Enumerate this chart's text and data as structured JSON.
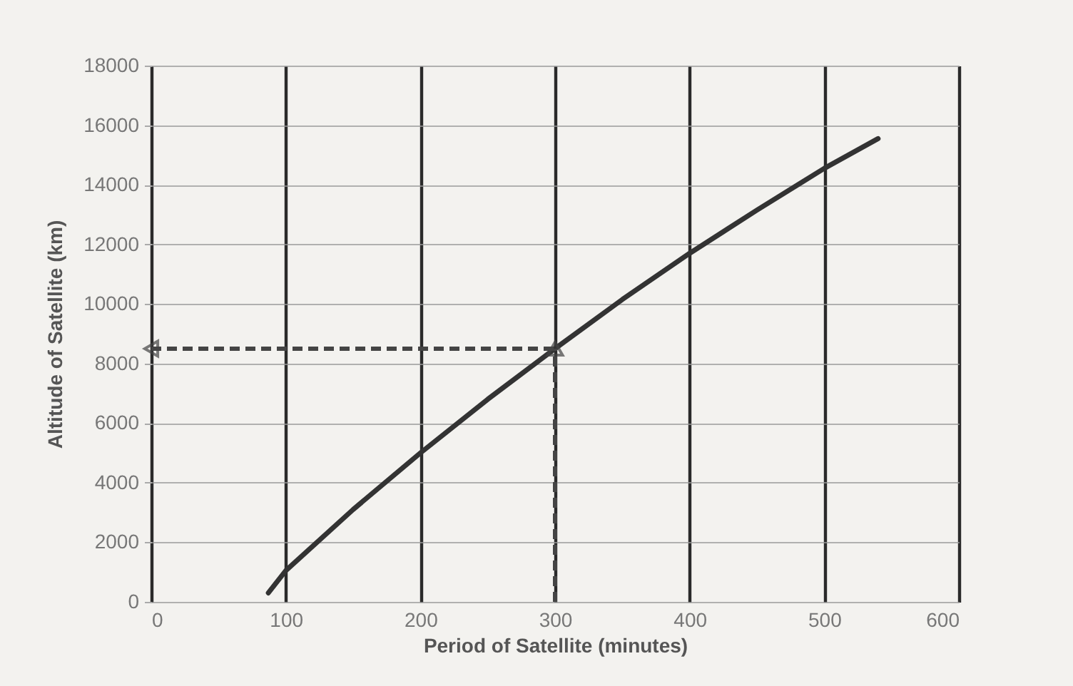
{
  "chart_data": {
    "type": "line",
    "xlabel": "Period of Satellite (minutes)",
    "ylabel": "Altitude of Satellite (km)",
    "xlim": [
      0,
      600
    ],
    "xticks": [
      0,
      100,
      200,
      300,
      400,
      500,
      600
    ],
    "ylim": [
      0,
      18000
    ],
    "yticks": [
      0,
      2000,
      4000,
      6000,
      8000,
      10000,
      12000,
      14000,
      16000,
      18000
    ],
    "grid": true,
    "series": [
      {
        "color": "#333333",
        "x": [
          87,
          100,
          150,
          200,
          250,
          300,
          350,
          400,
          450,
          500,
          540
        ],
        "values": [
          300,
          1050,
          3100,
          5000,
          6800,
          8500,
          10150,
          11700,
          13150,
          14550,
          15550
        ]
      }
    ],
    "ref_lines": [
      {
        "axis": "x",
        "value": 300,
        "color": "#444444",
        "line_style": "dashed"
      },
      {
        "axis": "y",
        "value": 8500,
        "color": "#444444",
        "line_style": "dashed"
      }
    ]
  }
}
